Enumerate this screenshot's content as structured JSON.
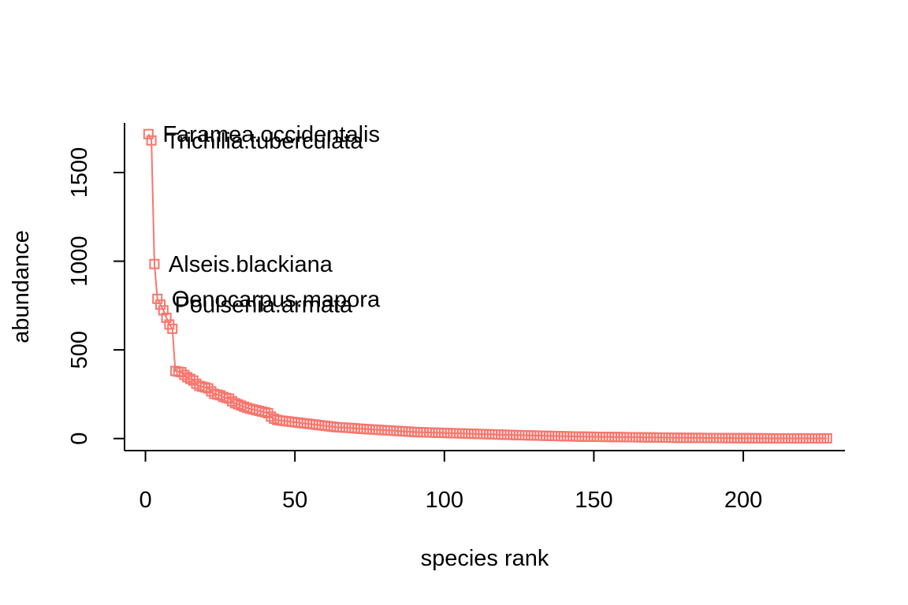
{
  "chart_data": {
    "type": "line",
    "title": "",
    "xlabel": "species rank",
    "ylabel": "abundance",
    "xlim": [
      -7,
      234
    ],
    "ylim": [
      -68,
      1780
    ],
    "x_ticks": [
      0,
      50,
      100,
      150,
      200
    ],
    "y_ticks": [
      0,
      500,
      1000,
      1500
    ],
    "grid": false,
    "marker": "open-square",
    "series": [
      {
        "color": "#F8766D",
        "values": [
          1717,
          1681,
          984,
          788,
          755,
          723,
          681,
          643,
          619,
          381,
          377,
          374,
          359,
          346,
          336,
          327,
          309,
          297,
          292,
          288,
          283,
          266,
          252,
          248,
          244,
          235,
          229,
          225,
          210,
          199,
          193,
          186,
          179,
          173,
          168,
          164,
          160,
          156,
          152,
          148,
          143,
          124,
          112,
          105,
          102,
          100,
          98,
          96,
          94,
          92,
          90,
          88,
          86,
          84,
          82,
          80,
          78,
          76,
          74,
          72,
          70,
          68,
          66,
          64,
          63,
          62,
          61,
          60,
          59,
          58,
          56,
          55,
          54,
          53,
          52,
          51,
          50,
          49,
          48,
          47,
          46,
          45,
          44,
          43,
          42,
          41,
          40,
          39,
          38,
          37,
          36,
          35.5,
          35,
          34.5,
          34,
          33.5,
          33,
          32.5,
          32,
          31.5,
          31,
          30.5,
          30,
          29.5,
          29,
          28.5,
          28,
          27.5,
          27,
          26.5,
          26,
          25.5,
          25,
          24.5,
          24,
          23.5,
          23,
          22.5,
          22,
          21.5,
          21,
          20.5,
          20,
          19.5,
          19,
          18.6,
          18.2,
          17.8,
          17.4,
          17,
          16.6,
          16.2,
          15.8,
          15.4,
          15,
          14.6,
          14.2,
          13.8,
          13.4,
          13,
          12.6,
          12.2,
          11.8,
          11.4,
          11,
          10.8,
          10.6,
          10.4,
          10.2,
          10,
          9.8,
          9.6,
          9.4,
          9.2,
          9,
          8.8,
          8.6,
          8.4,
          8.2,
          8,
          7.8,
          7.6,
          7.4,
          7.2,
          7,
          6.8,
          6.6,
          6.4,
          6.2,
          6,
          5.8,
          5.6,
          5.4,
          5.2,
          5,
          4.8,
          4.6,
          4.4,
          4.2,
          4,
          3.9,
          3.8,
          3.7,
          3.6,
          3.5,
          3.4,
          3.3,
          3.2,
          3.1,
          3,
          2.9,
          2.8,
          2.7,
          2.6,
          2.5,
          2.4,
          2.3,
          2.2,
          2.1,
          2,
          1.9,
          1.8,
          1.7,
          1.6,
          1.5,
          1.4,
          1.3,
          1.2,
          1.1,
          1,
          1,
          1,
          1,
          1,
          1,
          1,
          1,
          1,
          1,
          1,
          1,
          1,
          1,
          1,
          1,
          1,
          1,
          1
        ]
      }
    ],
    "annotations": [
      {
        "text": "Faramea.occidentalis",
        "x": 1,
        "y": 1717
      },
      {
        "text": "Trichilia.tuberculata",
        "x": 2,
        "y": 1681
      },
      {
        "text": "Alseis.blackiana",
        "x": 3,
        "y": 984
      },
      {
        "text": "Oenocarpus.mapora",
        "x": 4,
        "y": 788
      },
      {
        "text": "Poulsenia.armata",
        "x": 5,
        "y": 755
      }
    ]
  }
}
